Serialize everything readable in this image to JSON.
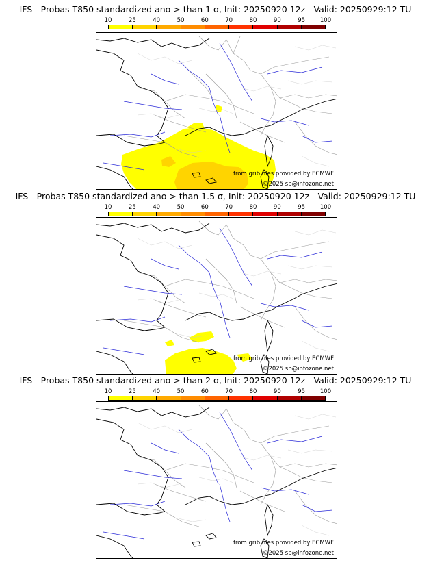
{
  "colorbar": {
    "ticks": [
      "10",
      "25",
      "40",
      "50",
      "60",
      "70",
      "80",
      "90",
      "95",
      "100"
    ],
    "colors": [
      "#ffff00",
      "#ffd400",
      "#ffaa00",
      "#ff8c00",
      "#ff6400",
      "#ff3200",
      "#e00000",
      "#b00000",
      "#800000"
    ]
  },
  "panels": [
    {
      "title": "IFS - Probas T850  standardized ano > than 1 σ, Init: 20250920 12z - Valid: 20250929:12 TU",
      "credit_source": "from grib files provided by ECMWF",
      "credit_copyright": "©2025 sb@infozone.net",
      "probability_levels": [
        "10",
        "25"
      ]
    },
    {
      "title": "IFS - Probas T850  standardized ano > than 1.5 σ, Init: 20250920 12z - Valid: 20250929:12 TU",
      "credit_source": "from grib files provided by ECMWF",
      "credit_copyright": "©2025 sb@infozone.net",
      "probability_levels": [
        "10"
      ]
    },
    {
      "title": "IFS - Probas T850  standardized ano > than 2 σ, Init: 20250920 12z - Valid: 20250929:12 TU",
      "credit_source": "from grib files provided by ECMWF",
      "credit_copyright": "©2025 sb@infozone.net",
      "probability_levels": []
    }
  ],
  "colors": {
    "coastline": "#000000",
    "borders": "#999999",
    "rivers": "#2a2ad8",
    "prob_low": "#ffff00",
    "prob_mid": "#ffd400"
  }
}
